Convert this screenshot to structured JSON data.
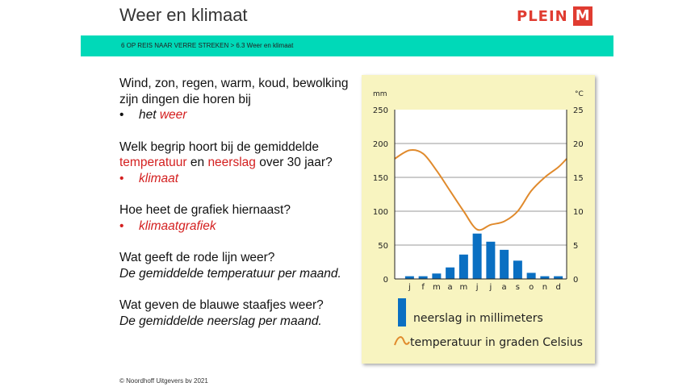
{
  "header": {
    "title": "Weer en klimaat",
    "logo_text": "PLEIN",
    "logo_mark": "M",
    "breadcrumb": "6 OP REIS NAAR VERRE STREKEN > 6.3 Weer en klimaat"
  },
  "qa": [
    {
      "q": "Wind, zon, regen, warm, koud, bewolking zijn dingen die horen bij",
      "a_prefix": "het ",
      "a_red": "weer"
    },
    {
      "q1": "Welk begrip hoort bij de gemiddelde",
      "q_red1": "temperatuur",
      "q_mid": " en ",
      "q_red2": "neerslag",
      "q2": " over 30 jaar?",
      "a": "klimaat"
    },
    {
      "q": "Hoe heet de grafiek hiernaast?",
      "a": "klimaatgrafiek"
    },
    {
      "q": "Wat geeft de rode lijn weer?",
      "a": "De gemiddelde temperatuur per maand."
    },
    {
      "q": "Wat geven de blauwe staafjes weer?",
      "a": "De gemiddelde neerslag per maand."
    }
  ],
  "bullet": "•",
  "footer": "© Noordhoff Uitgevers bv 2021",
  "chart_data": {
    "type": "bar+line",
    "categories": [
      "j",
      "f",
      "m",
      "a",
      "m",
      "j",
      "j",
      "a",
      "s",
      "o",
      "n",
      "d"
    ],
    "series": [
      {
        "name": "neerslag in millimeters",
        "axis": "left",
        "type": "bar",
        "color": "#0a6fc2",
        "values": [
          4,
          4,
          8,
          17,
          36,
          67,
          55,
          43,
          27,
          9,
          4,
          4
        ]
      },
      {
        "name": "temperatuur in graden Celsius",
        "axis": "right",
        "type": "line",
        "color": "#e08a2c",
        "values": [
          19,
          18.5,
          16,
          13,
          10,
          7.3,
          8,
          8.5,
          10,
          13,
          15,
          16.5
        ]
      }
    ],
    "left_unit": "mm",
    "right_unit": "°C",
    "left_ticks": [
      0,
      50,
      100,
      150,
      200,
      250
    ],
    "right_ticks": [
      0,
      5,
      10,
      15,
      20,
      25
    ],
    "ylim_left": [
      0,
      250
    ],
    "ylim_right": [
      0,
      25
    ],
    "grid": true,
    "legend": "bottom"
  }
}
